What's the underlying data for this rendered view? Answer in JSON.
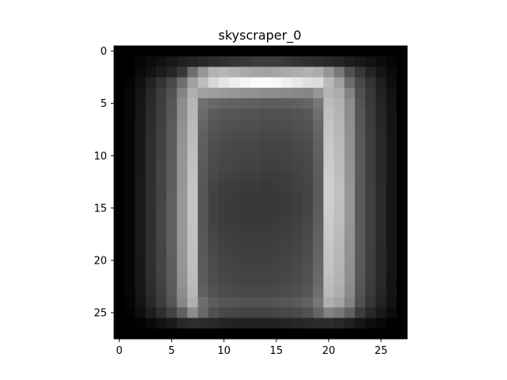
{
  "chart_data": {
    "type": "heatmap",
    "title": "skyscraper_0",
    "xlabel": "",
    "ylabel": "",
    "colormap": "gray",
    "x_ticks": [
      "0",
      "5",
      "10",
      "15",
      "20",
      "25"
    ],
    "y_ticks": [
      "0",
      "5",
      "10",
      "15",
      "20",
      "25"
    ],
    "xlim": [
      -0.5,
      27.5
    ],
    "ylim": [
      27.5,
      -0.5
    ],
    "grid": false,
    "legend": "none",
    "values": [
      [
        0,
        0,
        0,
        0,
        0,
        0,
        0,
        0,
        0,
        0,
        0,
        0,
        0,
        0,
        0,
        0,
        0,
        0,
        0,
        0,
        0,
        0,
        0,
        0,
        0,
        0,
        0,
        0
      ],
      [
        0,
        0,
        6,
        12,
        18,
        24,
        30,
        36,
        40,
        44,
        48,
        52,
        56,
        60,
        62,
        60,
        56,
        52,
        48,
        44,
        40,
        36,
        30,
        24,
        18,
        12,
        6,
        0
      ],
      [
        0,
        0,
        10,
        18,
        28,
        38,
        55,
        110,
        150,
        178,
        182,
        176,
        170,
        164,
        162,
        166,
        170,
        174,
        178,
        172,
        150,
        120,
        80,
        55,
        35,
        20,
        10,
        0
      ],
      [
        0,
        4,
        16,
        34,
        52,
        72,
        110,
        160,
        190,
        215,
        230,
        238,
        245,
        250,
        252,
        248,
        240,
        232,
        224,
        220,
        186,
        160,
        108,
        72,
        50,
        30,
        14,
        0
      ],
      [
        0,
        6,
        20,
        40,
        60,
        82,
        132,
        175,
        160,
        158,
        154,
        150,
        146,
        144,
        142,
        140,
        138,
        136,
        134,
        150,
        180,
        172,
        130,
        80,
        56,
        34,
        18,
        0
      ],
      [
        0,
        6,
        22,
        42,
        62,
        86,
        140,
        182,
        112,
        104,
        100,
        98,
        96,
        94,
        92,
        92,
        94,
        96,
        100,
        118,
        188,
        178,
        140,
        84,
        58,
        36,
        20,
        0
      ],
      [
        0,
        6,
        22,
        44,
        64,
        88,
        142,
        184,
        106,
        92,
        88,
        86,
        84,
        82,
        80,
        80,
        82,
        84,
        88,
        110,
        192,
        180,
        142,
        86,
        60,
        38,
        20,
        0
      ],
      [
        0,
        6,
        24,
        44,
        64,
        90,
        144,
        186,
        100,
        86,
        82,
        80,
        78,
        78,
        76,
        76,
        78,
        80,
        84,
        104,
        196,
        182,
        144,
        86,
        60,
        38,
        20,
        0
      ],
      [
        0,
        6,
        24,
        46,
        66,
        90,
        146,
        188,
        96,
        82,
        78,
        76,
        74,
        74,
        72,
        72,
        74,
        76,
        80,
        100,
        198,
        184,
        144,
        88,
        62,
        40,
        22,
        0
      ],
      [
        0,
        6,
        24,
        46,
        66,
        92,
        148,
        190,
        94,
        78,
        74,
        72,
        70,
        70,
        68,
        68,
        70,
        72,
        76,
        98,
        200,
        186,
        146,
        88,
        62,
        40,
        22,
        0
      ],
      [
        0,
        6,
        24,
        46,
        66,
        92,
        148,
        192,
        92,
        76,
        72,
        70,
        68,
        68,
        66,
        66,
        68,
        70,
        74,
        96,
        202,
        188,
        146,
        88,
        62,
        40,
        22,
        0
      ],
      [
        0,
        6,
        24,
        46,
        68,
        94,
        150,
        192,
        90,
        74,
        70,
        68,
        66,
        66,
        64,
        64,
        66,
        68,
        72,
        94,
        204,
        188,
        148,
        90,
        62,
        40,
        22,
        0
      ],
      [
        0,
        6,
        24,
        46,
        68,
        94,
        150,
        194,
        88,
        72,
        66,
        64,
        62,
        62,
        60,
        60,
        62,
        66,
        70,
        92,
        206,
        190,
        148,
        90,
        62,
        40,
        22,
        0
      ],
      [
        0,
        6,
        26,
        48,
        68,
        94,
        150,
        196,
        86,
        68,
        62,
        60,
        58,
        58,
        56,
        58,
        60,
        64,
        68,
        92,
        208,
        192,
        150,
        90,
        64,
        42,
        22,
        0
      ],
      [
        0,
        6,
        26,
        48,
        68,
        96,
        152,
        196,
        86,
        66,
        60,
        58,
        56,
        56,
        56,
        56,
        58,
        62,
        68,
        92,
        208,
        192,
        150,
        90,
        64,
        42,
        22,
        0
      ],
      [
        0,
        6,
        26,
        48,
        70,
        96,
        152,
        196,
        86,
        66,
        60,
        58,
        56,
        56,
        54,
        56,
        58,
        62,
        68,
        92,
        206,
        190,
        150,
        90,
        64,
        42,
        22,
        0
      ],
      [
        0,
        6,
        26,
        48,
        70,
        96,
        152,
        196,
        86,
        66,
        60,
        58,
        56,
        56,
        56,
        58,
        60,
        64,
        70,
        94,
        204,
        190,
        150,
        90,
        64,
        42,
        22,
        0
      ],
      [
        0,
        6,
        26,
        48,
        70,
        96,
        152,
        194,
        86,
        68,
        62,
        60,
        58,
        58,
        58,
        60,
        62,
        66,
        72,
        96,
        202,
        188,
        148,
        90,
        64,
        42,
        22,
        0
      ],
      [
        0,
        6,
        26,
        48,
        70,
        96,
        152,
        194,
        88,
        70,
        64,
        62,
        60,
        60,
        60,
        62,
        64,
        68,
        74,
        98,
        200,
        186,
        148,
        90,
        64,
        42,
        22,
        0
      ],
      [
        0,
        6,
        26,
        48,
        68,
        96,
        150,
        192,
        88,
        72,
        66,
        64,
        62,
        62,
        62,
        64,
        66,
        70,
        76,
        100,
        198,
        184,
        146,
        90,
        62,
        40,
        22,
        0
      ],
      [
        0,
        6,
        24,
        48,
        68,
        94,
        150,
        192,
        90,
        74,
        68,
        66,
        64,
        64,
        64,
        66,
        68,
        72,
        78,
        102,
        196,
        182,
        146,
        88,
        62,
        40,
        22,
        0
      ],
      [
        0,
        6,
        24,
        46,
        68,
        94,
        148,
        190,
        90,
        76,
        70,
        68,
        66,
        66,
        66,
        68,
        70,
        74,
        80,
        104,
        194,
        180,
        144,
        88,
        62,
        40,
        22,
        0
      ],
      [
        0,
        6,
        24,
        46,
        66,
        92,
        146,
        188,
        92,
        78,
        72,
        70,
        68,
        68,
        68,
        70,
        72,
        76,
        82,
        106,
        190,
        178,
        142,
        86,
        60,
        40,
        20,
        0
      ],
      [
        0,
        6,
        22,
        44,
        64,
        90,
        142,
        184,
        96,
        82,
        76,
        74,
        72,
        72,
        72,
        74,
        76,
        80,
        86,
        110,
        186,
        174,
        138,
        84,
        58,
        38,
        20,
        0
      ],
      [
        0,
        4,
        20,
        40,
        60,
        84,
        134,
        176,
        110,
        92,
        86,
        84,
        82,
        82,
        82,
        84,
        86,
        90,
        96,
        118,
        176,
        164,
        130,
        80,
        54,
        34,
        18,
        0
      ],
      [
        0,
        2,
        14,
        30,
        46,
        66,
        96,
        140,
        104,
        80,
        72,
        70,
        68,
        68,
        68,
        70,
        72,
        74,
        80,
        100,
        130,
        120,
        96,
        60,
        40,
        24,
        12,
        0
      ],
      [
        0,
        0,
        4,
        10,
        18,
        26,
        40,
        46,
        44,
        40,
        36,
        34,
        32,
        32,
        32,
        34,
        36,
        38,
        40,
        44,
        44,
        40,
        32,
        22,
        14,
        8,
        2,
        0
      ],
      [
        0,
        0,
        0,
        0,
        0,
        0,
        0,
        0,
        0,
        0,
        0,
        0,
        0,
        0,
        0,
        0,
        0,
        0,
        0,
        0,
        0,
        0,
        0,
        0,
        0,
        0,
        0,
        0
      ]
    ]
  }
}
